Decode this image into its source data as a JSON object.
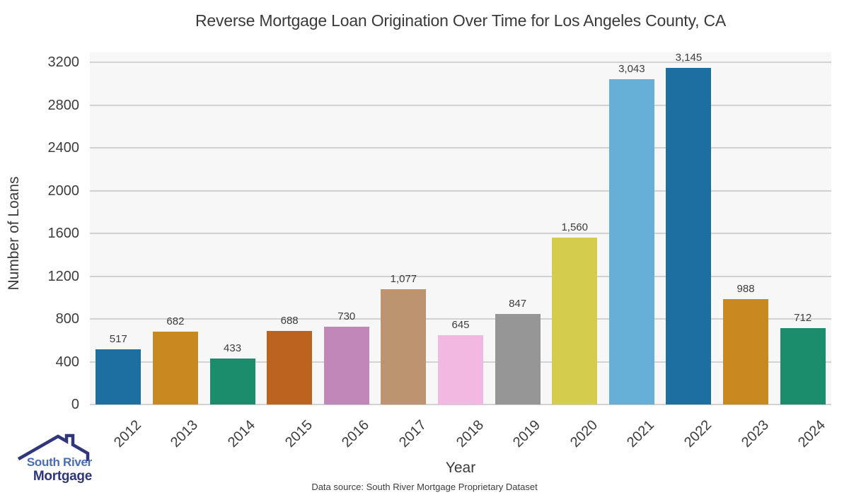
{
  "title": "Reverse Mortgage Loan Origination Over Time for Los Angeles County, CA",
  "chart_data": {
    "type": "bar",
    "categories": [
      "2012",
      "2013",
      "2014",
      "2015",
      "2016",
      "2017",
      "2018",
      "2019",
      "2020",
      "2021",
      "2022",
      "2023",
      "2024"
    ],
    "values": [
      517,
      682,
      433,
      688,
      730,
      1077,
      645,
      847,
      1560,
      3043,
      3145,
      988,
      712
    ],
    "value_labels": [
      "517",
      "682",
      "433",
      "688",
      "730",
      "1,077",
      "645",
      "847",
      "1,560",
      "3,043",
      "3,145",
      "988",
      "712"
    ],
    "bar_colors": [
      "#1d6fa1",
      "#c88a20",
      "#1b8d6c",
      "#bb631f",
      "#c287b9",
      "#bd9470",
      "#f2b8e1",
      "#969696",
      "#d4cc4c",
      "#66afd7",
      "#1d6fa1",
      "#c88a20",
      "#1b8d6c"
    ],
    "title": "Reverse Mortgage Loan Origination Over Time for Los Angeles County, CA",
    "xlabel": "Year",
    "ylabel": "Number of Loans",
    "ylim": [
      0,
      3200
    ],
    "ytick_step": 400,
    "ytick_labels": [
      "0",
      "400",
      "800",
      "1200",
      "1600",
      "2000",
      "2400",
      "2800",
      "3200"
    ],
    "grid": "on",
    "legend": "none",
    "plot_bg_color": "#f7f7f7",
    "grid_color": "#d2d2d2",
    "text_color": "#3d3d3d"
  },
  "caption": "Data source: South River Mortgage Proprietary Dataset",
  "logo": {
    "line1": "South River",
    "line2": "Mortgage",
    "color_primary": "#4a6db2",
    "color_secondary": "#2f3679"
  }
}
